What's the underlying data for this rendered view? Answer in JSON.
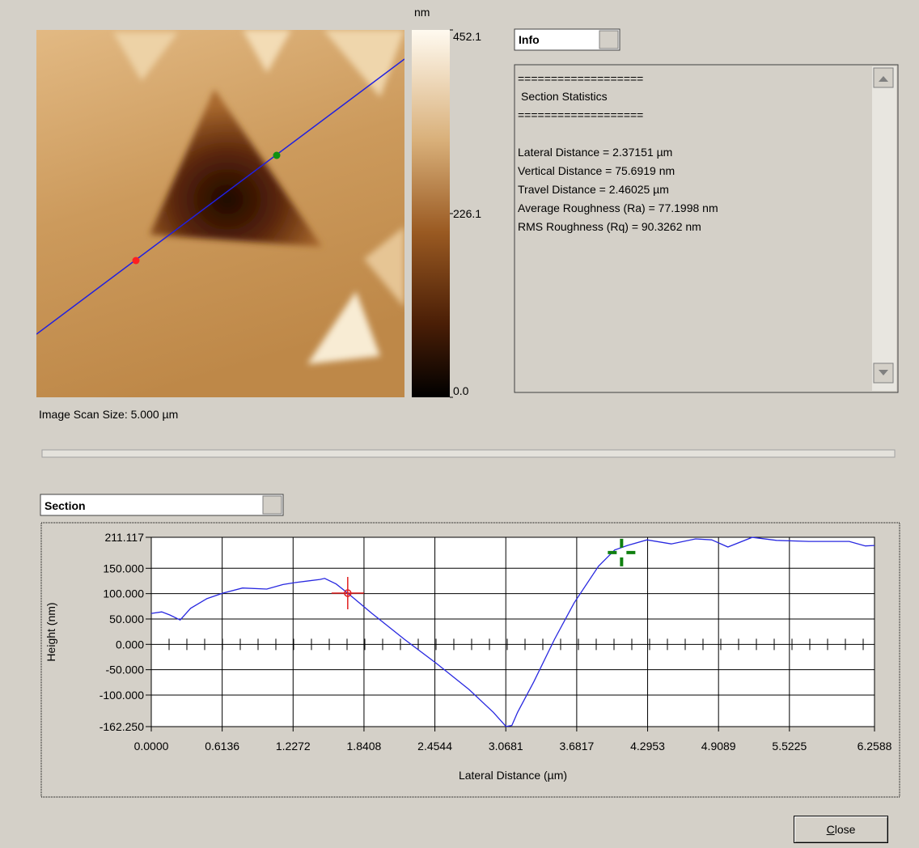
{
  "image": {
    "colorbar": {
      "unit": "nm",
      "lim": [
        0,
        452.1
      ],
      "ticks": [
        452.1,
        226.1,
        {
          "value": 0,
          "label": "0.0"
        }
      ]
    },
    "scan_size": "Image Scan Size:  5.000 µm"
  },
  "info_dropdown": "Info",
  "info_panel": {
    "rule": "===================",
    "heading": "Section Statistics",
    "lines": [
      "Lateral Distance = 2.37151 µm",
      "Vertical Distance = 75.6919 nm",
      "Travel Distance = 2.46025 µm",
      "Average Roughness (Ra) = 77.1998 nm",
      "RMS Roughness (Rq) = 90.3262 nm"
    ]
  },
  "section_dropdown": "Section",
  "chart_data": {
    "type": "line",
    "xlabel": "Lateral Distance (µm)",
    "ylabel": "Height (nm)",
    "xlim": [
      0,
      6.2588
    ],
    "ylim": [
      -162.25,
      211.117
    ],
    "xticks": [
      {
        "value": 0,
        "label": "0.0000"
      },
      0.6136,
      1.2272,
      1.8408,
      2.4544,
      3.0681,
      3.6817,
      4.2953,
      4.9089,
      5.5225,
      6.2588
    ],
    "yticks": [
      211.117,
      {
        "value": 150,
        "label": "150.000"
      },
      {
        "value": 100,
        "label": "100.000"
      },
      {
        "value": 50,
        "label": "50.000"
      },
      {
        "value": 0,
        "label": "0.000"
      },
      {
        "value": -50,
        "label": "-50.000"
      },
      {
        "value": -100,
        "label": "-100.000"
      },
      {
        "value": -162.25,
        "label": "-162.250"
      }
    ],
    "grid": true,
    "series": [
      {
        "name": "Section",
        "color": "#2828e0",
        "x": [
          0,
          0.09,
          0.16,
          0.25,
          0.34,
          0.48,
          0.62,
          0.79,
          1.0,
          1.14,
          1.25,
          1.46,
          1.5,
          1.6,
          1.7,
          1.91,
          2.19,
          2.47,
          2.75,
          2.96,
          3.07,
          3.12,
          3.17,
          3.31,
          3.49,
          3.66,
          3.87,
          4.01,
          4.12,
          4.29,
          4.5,
          4.71,
          4.85,
          4.99,
          5.2,
          5.41,
          5.69,
          6.04,
          6.18,
          6.2588
        ],
        "values": [
          61,
          64,
          58,
          48,
          71,
          90,
          101,
          111,
          109,
          118,
          122,
          128,
          130,
          119,
          101,
          61,
          10,
          -38,
          -89,
          -134,
          -162,
          -160,
          -134,
          -74,
          10,
          82,
          154,
          186,
          195,
          206,
          198,
          208,
          206,
          192,
          211,
          205,
          203,
          203,
          194,
          195
        ]
      }
    ],
    "cursors": [
      {
        "x": 1.7,
        "y": 101,
        "color": "#e02020"
      },
      {
        "x": 4.07,
        "y": 181,
        "color": "#108010"
      }
    ]
  },
  "close_button": "Close"
}
